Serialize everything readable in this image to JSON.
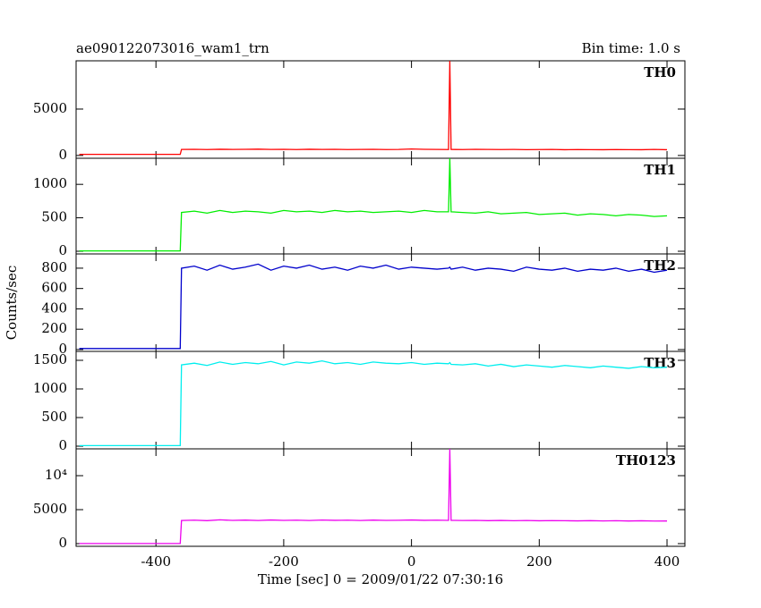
{
  "chart_data": [
    {
      "type": "line",
      "title": "ae090122073016_wam1_trn",
      "subtitle": "Bin time: 1.0 s",
      "panel_label": "TH0",
      "x": [
        -520,
        -480,
        -440,
        -400,
        -362,
        -360,
        -340,
        -320,
        -300,
        -280,
        -260,
        -240,
        -220,
        -200,
        -180,
        -160,
        -140,
        -120,
        -100,
        -80,
        -60,
        -40,
        -20,
        0,
        20,
        40,
        58,
        60,
        62,
        80,
        100,
        120,
        140,
        160,
        180,
        200,
        220,
        240,
        260,
        280,
        300,
        320,
        340,
        360,
        380,
        400
      ],
      "series": [
        {
          "name": "TH0",
          "color": "#ff0000",
          "values": [
            120,
            120,
            120,
            120,
            120,
            650,
            660,
            640,
            670,
            650,
            660,
            680,
            650,
            660,
            640,
            670,
            650,
            660,
            640,
            650,
            660,
            640,
            650,
            700,
            660,
            650,
            640,
            10190,
            650,
            640,
            660,
            650,
            640,
            650,
            630,
            640,
            650,
            620,
            640,
            630,
            620,
            640,
            630,
            620,
            650,
            620
          ]
        }
      ],
      "xlim": [
        -525,
        428
      ],
      "xticks": [
        -400,
        -200,
        0,
        200,
        400
      ],
      "ylim": [
        -300,
        10200
      ],
      "yticks": [
        0,
        5000
      ]
    },
    {
      "type": "line",
      "panel_label": "TH1",
      "x": [
        -520,
        -480,
        -440,
        -400,
        -362,
        -360,
        -340,
        -320,
        -300,
        -280,
        -260,
        -240,
        -220,
        -200,
        -180,
        -160,
        -140,
        -120,
        -100,
        -80,
        -60,
        -40,
        -20,
        0,
        20,
        40,
        58,
        60,
        62,
        80,
        100,
        120,
        140,
        160,
        180,
        200,
        220,
        240,
        260,
        280,
        300,
        320,
        340,
        360,
        380,
        400
      ],
      "series": [
        {
          "name": "TH1",
          "color": "#00ee00",
          "values": [
            5,
            5,
            5,
            5,
            5,
            580,
            600,
            570,
            610,
            580,
            600,
            590,
            570,
            610,
            590,
            600,
            580,
            610,
            590,
            600,
            580,
            590,
            600,
            580,
            610,
            590,
            590,
            1390,
            590,
            580,
            570,
            590,
            560,
            570,
            580,
            550,
            560,
            570,
            540,
            560,
            550,
            530,
            550,
            540,
            520,
            530
          ]
        }
      ],
      "xlim": [
        -525,
        428
      ],
      "xticks": [
        -400,
        -200,
        0,
        200,
        400
      ],
      "ylim": [
        -40,
        1390
      ],
      "yticks": [
        0,
        500,
        1000
      ]
    },
    {
      "type": "line",
      "panel_label": "TH2",
      "ylabel": "Counts/sec",
      "x": [
        -520,
        -480,
        -440,
        -400,
        -362,
        -360,
        -340,
        -320,
        -300,
        -280,
        -260,
        -240,
        -220,
        -200,
        -180,
        -160,
        -140,
        -120,
        -100,
        -80,
        -60,
        -40,
        -20,
        0,
        20,
        40,
        58,
        60,
        62,
        80,
        100,
        120,
        140,
        160,
        180,
        200,
        220,
        240,
        260,
        280,
        300,
        320,
        340,
        360,
        380,
        400
      ],
      "series": [
        {
          "name": "TH2",
          "color": "#0000cc",
          "values": [
            10,
            10,
            10,
            10,
            10,
            800,
            820,
            780,
            830,
            790,
            810,
            840,
            780,
            820,
            800,
            830,
            790,
            810,
            780,
            820,
            800,
            830,
            790,
            810,
            800,
            790,
            800,
            810,
            790,
            810,
            780,
            800,
            790,
            770,
            810,
            790,
            780,
            800,
            770,
            790,
            780,
            800,
            770,
            790,
            760,
            780
          ]
        }
      ],
      "xlim": [
        -525,
        428
      ],
      "xticks": [
        -400,
        -200,
        0,
        200,
        400
      ],
      "ylim": [
        -18,
        940
      ],
      "yticks": [
        0,
        200,
        400,
        600,
        800
      ]
    },
    {
      "type": "line",
      "panel_label": "TH3",
      "x": [
        -520,
        -480,
        -440,
        -400,
        -362,
        -360,
        -340,
        -320,
        -300,
        -280,
        -260,
        -240,
        -220,
        -200,
        -180,
        -160,
        -140,
        -120,
        -100,
        -80,
        -60,
        -40,
        -20,
        0,
        20,
        40,
        58,
        60,
        62,
        80,
        100,
        120,
        140,
        160,
        180,
        200,
        220,
        240,
        260,
        280,
        300,
        320,
        340,
        360,
        380,
        400
      ],
      "series": [
        {
          "name": "TH3",
          "color": "#00eeee",
          "values": [
            10,
            10,
            10,
            10,
            10,
            1420,
            1450,
            1410,
            1470,
            1430,
            1460,
            1440,
            1480,
            1420,
            1470,
            1450,
            1490,
            1440,
            1460,
            1430,
            1470,
            1450,
            1440,
            1460,
            1430,
            1450,
            1440,
            1460,
            1430,
            1420,
            1440,
            1400,
            1430,
            1390,
            1420,
            1400,
            1380,
            1410,
            1390,
            1370,
            1400,
            1380,
            1360,
            1390,
            1370,
            1380
          ]
        }
      ],
      "xlim": [
        -525,
        428
      ],
      "xticks": [
        -400,
        -200,
        0,
        200,
        400
      ],
      "ylim": [
        -47,
        1656
      ],
      "yticks": [
        0,
        500,
        1000,
        1500
      ]
    },
    {
      "type": "line",
      "panel_label": "TH0123",
      "xlabel": "Time [sec] 0 = 2009/01/22 07:30:16",
      "x": [
        -520,
        -480,
        -440,
        -400,
        -362,
        -360,
        -340,
        -320,
        -300,
        -280,
        -260,
        -240,
        -220,
        -200,
        -180,
        -160,
        -140,
        -120,
        -100,
        -80,
        -60,
        -40,
        -20,
        0,
        20,
        40,
        58,
        60,
        62,
        80,
        100,
        120,
        140,
        160,
        180,
        200,
        220,
        240,
        260,
        280,
        300,
        320,
        340,
        360,
        380,
        400
      ],
      "series": [
        {
          "name": "TH0123",
          "color": "#ee00ee",
          "values": [
            20,
            20,
            20,
            20,
            20,
            3400,
            3450,
            3380,
            3500,
            3420,
            3460,
            3400,
            3480,
            3420,
            3450,
            3400,
            3470,
            3430,
            3450,
            3400,
            3460,
            3420,
            3440,
            3480,
            3430,
            3450,
            3420,
            13940,
            3430,
            3400,
            3420,
            3380,
            3410,
            3370,
            3400,
            3360,
            3390,
            3370,
            3350,
            3380,
            3340,
            3370,
            3330,
            3360,
            3320,
            3330
          ]
        }
      ],
      "xlim": [
        -525,
        428
      ],
      "xticks": [
        -400,
        -200,
        0,
        200,
        400
      ],
      "ylim": [
        -395,
        13947
      ],
      "yticks": [
        0,
        5000,
        {
          "value": 10000,
          "label": "10⁴"
        }
      ]
    }
  ]
}
